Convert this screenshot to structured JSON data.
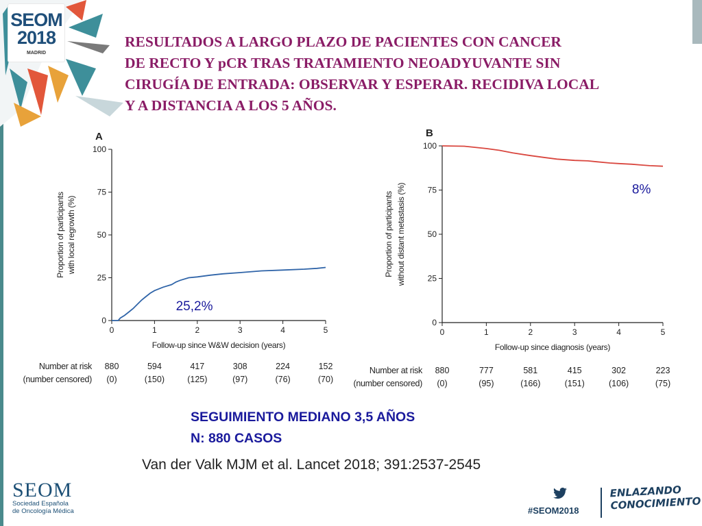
{
  "branding": {
    "logo_line1": "SEOM",
    "logo_line2": "2018",
    "logo_city": "MADRID",
    "footer_org_name": "SEOM",
    "footer_org_sub1": "Sociedad Española",
    "footer_org_sub2": "de Oncología Médica",
    "hashtag": "#SEOM2018",
    "slogan_line1": "ENLAZANDO",
    "slogan_line2": "CONOCIMIENTO"
  },
  "title_lines": [
    "RESULTADOS A LARGO PLAZO DE PACIENTES CON CANCER",
    "DE RECTO Y pCR TRAS TRATAMIENTO NEOADYUVANTE SIN",
    "CIRUGÍA DE ENTRADA: OBSERVAR Y ESPERAR. RECIDIVA LOCAL",
    "Y A DISTANCIA A LOS 5 AÑOS."
  ],
  "summary": {
    "line1": "SEGUIMIENTO MEDIANO 3,5 AÑOS",
    "line2": "N: 880 CASOS"
  },
  "citation": "Van der Valk MJM et al. Lancet 2018; 391:2537-2545",
  "colors": {
    "title": "#8a1c66",
    "summary": "#1a1a9c",
    "curve_a": "#2f64a8",
    "curve_b": "#d9463e",
    "annotation_a": "#1a1a9c",
    "annotation_b": "#1a1a9c"
  },
  "icons": [
    "twitter-bird-icon"
  ],
  "chart_data": [
    {
      "panel": "A",
      "type": "line",
      "xlabel": "Follow-up since W&W decision (years)",
      "ylabel_line1": "Proportion of participants",
      "ylabel_line2": "with local regrowth (%)",
      "xlim": [
        0,
        5
      ],
      "ylim": [
        0,
        100
      ],
      "xticks": [
        0,
        1,
        2,
        3,
        4,
        5
      ],
      "yticks": [
        0,
        25,
        50,
        75,
        100
      ],
      "series": [
        {
          "x": [
            0,
            0.15,
            0.2,
            0.3,
            0.4,
            0.5,
            0.6,
            0.7,
            0.8,
            0.9,
            1.0,
            1.2,
            1.4,
            1.5,
            1.6,
            1.8,
            2.0,
            2.3,
            2.6,
            3.0,
            3.5,
            4.0,
            4.5,
            4.8,
            5.0
          ],
          "y": [
            0,
            0,
            1.5,
            3,
            5,
            7,
            9.5,
            12,
            14,
            16,
            17.5,
            19.5,
            21,
            22.5,
            23.5,
            25,
            25.5,
            26.5,
            27.3,
            28,
            29,
            29.5,
            30,
            30.5,
            31
          ]
        }
      ],
      "annotation": "25,2%",
      "risk_table": {
        "label_line1": "Number at risk",
        "label_line2": "(number censored)",
        "times": [
          0,
          1,
          2,
          3,
          4,
          5
        ],
        "at_risk": [
          "880",
          "594",
          "417",
          "308",
          "224",
          "152"
        ],
        "censored": [
          "(0)",
          "(150)",
          "(125)",
          "(97)",
          "(76)",
          "(70)"
        ]
      }
    },
    {
      "panel": "B",
      "type": "line",
      "xlabel": "Follow-up since diagnosis (years)",
      "ylabel_line1": "Proportion of participants",
      "ylabel_line2": "without distant metastasis (%)",
      "xlim": [
        0,
        5
      ],
      "ylim": [
        0,
        100
      ],
      "xticks": [
        0,
        1,
        2,
        3,
        4,
        5
      ],
      "yticks": [
        0,
        25,
        50,
        75,
        100
      ],
      "series": [
        {
          "x": [
            0,
            0.5,
            1.0,
            1.3,
            1.6,
            2.0,
            2.3,
            2.6,
            3.0,
            3.3,
            3.5,
            3.8,
            4.0,
            4.3,
            4.5,
            4.7,
            5.0
          ],
          "y": [
            100,
            99.8,
            98.5,
            97.5,
            96,
            94.5,
            93.5,
            92.5,
            91.8,
            91.5,
            91,
            90.3,
            90,
            89.6,
            89.2,
            88.8,
            88.5
          ]
        }
      ],
      "annotation": "8%",
      "risk_table": {
        "label_line1": "Number at risk",
        "label_line2": "(number censored)",
        "times": [
          0,
          1,
          2,
          3,
          4,
          5
        ],
        "at_risk": [
          "880",
          "777",
          "581",
          "415",
          "302",
          "223"
        ],
        "censored": [
          "(0)",
          "(95)",
          "(166)",
          "(151)",
          "(106)",
          "(75)"
        ]
      }
    }
  ]
}
